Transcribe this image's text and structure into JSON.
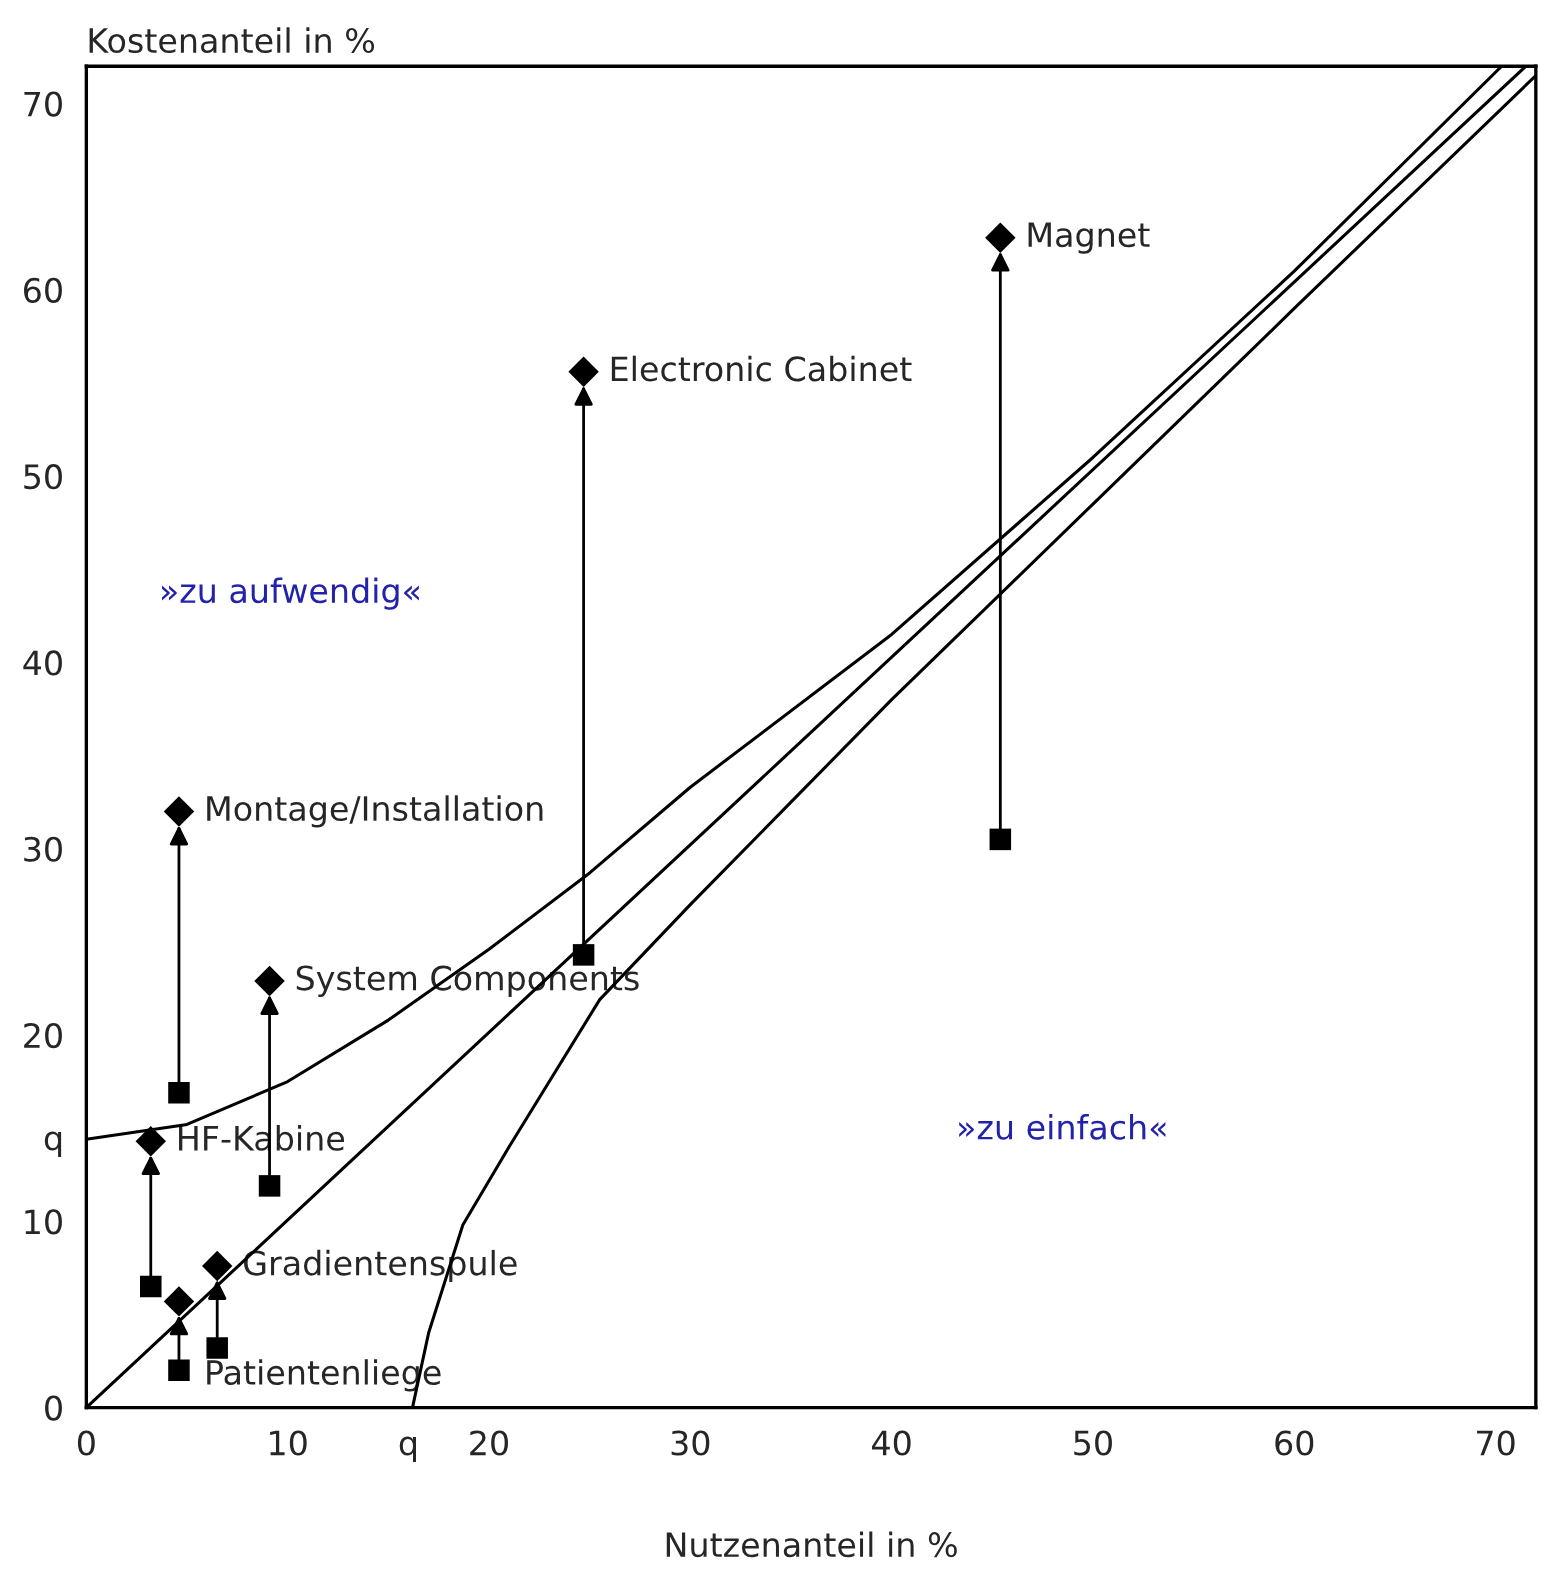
{
  "chart_data": {
    "type": "scatter",
    "xlabel": "Nutzenanteil in %",
    "ylabel": "Kostenanteil in %",
    "xlim": [
      0,
      72
    ],
    "ylim": [
      0,
      72
    ],
    "xticks": [
      0,
      10,
      {
        "value": 16,
        "label": "q"
      },
      20,
      30,
      40,
      50,
      60,
      70
    ],
    "yticks": [
      0,
      10,
      {
        "value": 14.5,
        "label": "q"
      },
      20,
      30,
      40,
      50,
      60,
      70
    ],
    "grid": false,
    "legend": false,
    "series": [
      {
        "type": "scatter",
        "marker": "square",
        "color": "#000000",
        "x": [
          45.4,
          24.7,
          4.6,
          9.1,
          3.2,
          6.5,
          4.6
        ],
        "values": [
          30.5,
          24.3,
          16.9,
          11.9,
          6.5,
          3.2,
          2.0
        ]
      },
      {
        "type": "scatter",
        "marker": "diamond",
        "color": "#000000",
        "x": [
          45.4,
          24.7,
          4.6,
          9.1,
          3.2,
          6.5,
          4.6
        ],
        "values": [
          62.8,
          55.6,
          32.0,
          22.9,
          14.3,
          7.6,
          5.7
        ]
      },
      {
        "type": "line",
        "marker": "none",
        "color": "#000000",
        "x": [
          0,
          5,
          10,
          15,
          20,
          25,
          30,
          40,
          50,
          60,
          70.3
        ],
        "values": [
          14.4,
          15.2,
          17.5,
          20.8,
          24.6,
          28.7,
          33.3,
          41.5,
          51,
          61,
          72
        ]
      },
      {
        "type": "line",
        "marker": "none",
        "color": "#000000",
        "x": [
          0,
          71.5
        ],
        "values": [
          0,
          72
        ]
      },
      {
        "type": "line",
        "marker": "none",
        "color": "#000000",
        "x": [
          16.2,
          17,
          18.7,
          21,
          25.5,
          30,
          35,
          40,
          50,
          60,
          72
        ],
        "values": [
          0,
          4,
          9.8,
          14,
          21.9,
          27,
          32.5,
          38,
          48.5,
          59,
          71.5
        ]
      }
    ],
    "annotations": [
      {
        "text": "Magnet",
        "x": 45.4,
        "y": 62.8
      },
      {
        "text": "Electronic Cabinet",
        "x": 24.7,
        "y": 55.6
      },
      {
        "text": "Montage/Installation",
        "x": 4.6,
        "y": 32.0
      },
      {
        "text": "System Components",
        "x": 9.1,
        "y": 22.9
      },
      {
        "text": "HF-Kabine",
        "x": 3.2,
        "y": 14.3
      },
      {
        "text": "Gradientenspule",
        "x": 6.5,
        "y": 7.6
      },
      {
        "text": "Patientenliege",
        "x": 4.6,
        "y": 2.0
      },
      "»zu aufwendig«",
      "»zu einfach«"
    ]
  }
}
